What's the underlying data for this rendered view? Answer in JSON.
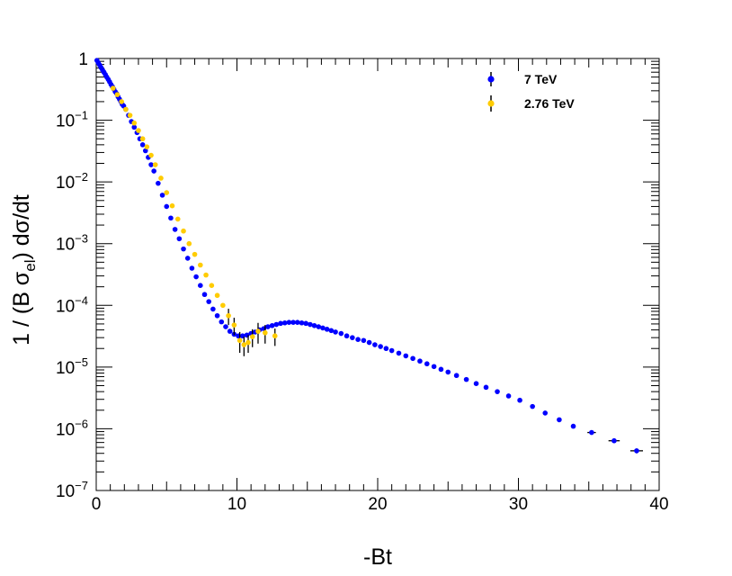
{
  "chart_data": {
    "type": "scatter",
    "xlabel": "-Bt",
    "ylabel": "1 / (B σ_el)  dσ/dt",
    "ylabel_parts": {
      "pre": "1 / (B σ",
      "sub": "el",
      "post": ")  dσ/dt"
    },
    "xlim": [
      0,
      40
    ],
    "ylim": [
      1e-07,
      1
    ],
    "yscale": "log",
    "grid": false,
    "legend_position": "top-right",
    "x_ticks": [
      "0",
      "10",
      "20",
      "30",
      "40"
    ],
    "y_ticks": [
      {
        "base": "1",
        "exp": ""
      },
      {
        "base": "10",
        "exp": "−1"
      },
      {
        "base": "10",
        "exp": "−2"
      },
      {
        "base": "10",
        "exp": "−3"
      },
      {
        "base": "10",
        "exp": "−4"
      },
      {
        "base": "10",
        "exp": "−5"
      },
      {
        "base": "10",
        "exp": "−6"
      },
      {
        "base": "10",
        "exp": "−7"
      }
    ],
    "series": [
      {
        "name": "7 TeV",
        "color": "#0000ff",
        "x": [
          0.05,
          0.15,
          0.25,
          0.35,
          0.45,
          0.55,
          0.65,
          0.75,
          0.85,
          0.95,
          1.05,
          1.15,
          1.25,
          1.35,
          1.45,
          1.55,
          1.65,
          1.75,
          1.85,
          1.95,
          2.1,
          2.3,
          2.5,
          2.7,
          2.9,
          3.1,
          3.3,
          3.5,
          3.7,
          3.9,
          4.1,
          4.4,
          4.7,
          5.0,
          5.3,
          5.6,
          5.9,
          6.2,
          6.5,
          6.8,
          7.1,
          7.4,
          7.7,
          8.0,
          8.3,
          8.6,
          8.9,
          9.2,
          9.5,
          9.8,
          10.1,
          10.4,
          10.7,
          11.0,
          11.3,
          11.6,
          11.9,
          12.2,
          12.5,
          12.8,
          13.1,
          13.4,
          13.7,
          14.0,
          14.3,
          14.6,
          14.9,
          15.2,
          15.5,
          15.8,
          16.1,
          16.4,
          16.7,
          17.0,
          17.4,
          17.8,
          18.2,
          18.6,
          19.0,
          19.4,
          19.8,
          20.2,
          20.6,
          21.0,
          21.5,
          22.0,
          22.5,
          23.0,
          23.5,
          24.0,
          24.5,
          25.0,
          25.6,
          26.3,
          27.0,
          27.7,
          28.5,
          29.3,
          30.1,
          31.0,
          31.9,
          32.9,
          33.9,
          35.2,
          36.8,
          38.4
        ],
        "y": [
          0.93,
          0.85,
          0.78,
          0.71,
          0.65,
          0.6,
          0.55,
          0.5,
          0.46,
          0.42,
          0.38,
          0.35,
          0.32,
          0.29,
          0.27,
          0.24,
          0.22,
          0.2,
          0.18,
          0.17,
          0.15,
          0.12,
          0.095,
          0.077,
          0.063,
          0.05,
          0.04,
          0.032,
          0.025,
          0.019,
          0.015,
          0.0095,
          0.0061,
          0.004,
          0.0026,
          0.0017,
          0.0012,
          0.00082,
          0.00058,
          0.0004,
          0.00029,
          0.00021,
          0.00015,
          0.000115,
          8.7e-05,
          6.8e-05,
          5.4e-05,
          4.5e-05,
          3.8e-05,
          3.4e-05,
          3.2e-05,
          3.2e-05,
          3.3e-05,
          3.5e-05,
          3.7e-05,
          4e-05,
          4.2e-05,
          4.5e-05,
          4.7e-05,
          4.9e-05,
          5.1e-05,
          5.2e-05,
          5.3e-05,
          5.3e-05,
          5.3e-05,
          5.2e-05,
          5.1e-05,
          4.9e-05,
          4.7e-05,
          4.5e-05,
          4.3e-05,
          4.1e-05,
          3.9e-05,
          3.7e-05,
          3.5e-05,
          3.2e-05,
          3e-05,
          2.8e-05,
          2.7e-05,
          2.5e-05,
          2.3e-05,
          2.15e-05,
          2e-05,
          1.85e-05,
          1.68e-05,
          1.52e-05,
          1.38e-05,
          1.25e-05,
          1.13e-05,
          1.02e-05,
          9.2e-06,
          8.3e-06,
          7.3e-06,
          6.3e-06,
          5.4e-06,
          4.7e-06,
          4e-06,
          3.4e-06,
          2.9e-06,
          2.3e-06,
          1.8e-06,
          1.4e-06,
          1.1e-06,
          8.7e-07,
          6.4e-07,
          4.4e-07
        ],
        "err_y": [
          0,
          0,
          0,
          0,
          0,
          0,
          0,
          0,
          0,
          0,
          0,
          0,
          0,
          0,
          0,
          0,
          0,
          0,
          0,
          0,
          0,
          0,
          0,
          0,
          0,
          0,
          0,
          0,
          0,
          0,
          0,
          0,
          0,
          0,
          0,
          0,
          0,
          0,
          0,
          0,
          0,
          0,
          0,
          0,
          0,
          0,
          0,
          0,
          0,
          0,
          0,
          0,
          0,
          0,
          0,
          0,
          0,
          0,
          0,
          0,
          0,
          0,
          0,
          0,
          0,
          0,
          0,
          0,
          0,
          0,
          0,
          0,
          0,
          0,
          0,
          0,
          0,
          0,
          0,
          0,
          0,
          0,
          0,
          0,
          0,
          0,
          0,
          0,
          0,
          0,
          0,
          0,
          0,
          0,
          0,
          0,
          0,
          0,
          2e-07,
          1.5e-07,
          1.2e-07,
          1e-07,
          8e-08,
          6e-08,
          5e-08,
          4e-08
        ],
        "err_x": [
          0,
          0,
          0,
          0,
          0,
          0,
          0,
          0,
          0,
          0,
          0,
          0,
          0,
          0,
          0,
          0,
          0,
          0,
          0,
          0,
          0,
          0,
          0,
          0,
          0,
          0,
          0,
          0,
          0,
          0,
          0,
          0,
          0,
          0,
          0,
          0,
          0,
          0,
          0,
          0,
          0,
          0,
          0,
          0,
          0,
          0,
          0,
          0,
          0,
          0,
          0,
          0,
          0,
          0,
          0,
          0,
          0,
          0,
          0,
          0,
          0,
          0,
          0,
          0,
          0,
          0,
          0,
          0,
          0,
          0,
          0,
          0,
          0,
          0,
          0,
          0,
          0,
          0,
          0,
          0,
          0,
          0,
          0,
          0,
          0,
          0,
          0,
          0,
          0,
          0,
          0,
          0,
          0,
          0,
          0,
          0,
          0,
          0,
          0,
          0,
          0,
          0,
          0,
          0.3,
          0.4,
          0.45,
          0.5
        ]
      },
      {
        "name": "2.76 TeV",
        "color": "#ffcc00",
        "x": [
          1.2,
          1.5,
          1.8,
          2.1,
          2.4,
          2.7,
          3.0,
          3.3,
          3.6,
          3.9,
          4.2,
          4.6,
          5.0,
          5.4,
          5.8,
          6.2,
          6.6,
          7.0,
          7.4,
          7.8,
          8.2,
          8.6,
          9.0,
          9.4,
          9.8,
          10.2,
          10.5,
          10.8,
          11.1,
          11.5,
          12.0,
          12.7
        ],
        "y": [
          0.33,
          0.26,
          0.2,
          0.15,
          0.12,
          0.09,
          0.068,
          0.05,
          0.037,
          0.027,
          0.019,
          0.0115,
          0.0067,
          0.0041,
          0.0025,
          0.0016,
          0.001,
          0.00067,
          0.00045,
          0.00031,
          0.00021,
          0.000145,
          0.0001,
          6.8e-05,
          4.8e-05,
          2.7e-05,
          2.3e-05,
          2.5e-05,
          3.1e-05,
          3.8e-05,
          3.6e-05,
          3.2e-05
        ],
        "err_y": [
          0,
          0,
          0,
          0,
          0,
          0,
          0,
          0,
          0,
          0,
          0,
          0,
          0,
          0,
          0,
          0,
          0,
          0,
          0,
          0,
          0,
          0,
          0,
          2e-05,
          1.5e-05,
          1e-05,
          8e-06,
          8e-06,
          1e-05,
          1.4e-05,
          1.2e-05,
          1e-05
        ]
      }
    ]
  }
}
